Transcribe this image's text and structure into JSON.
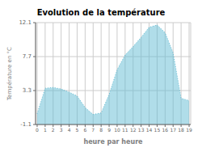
{
  "chart_data": {
    "type": "area",
    "title": "Evolution de la température",
    "x_label": "heure par heure",
    "y_label": "Température en °C",
    "x": [
      0,
      1,
      2,
      3,
      4,
      5,
      6,
      7,
      8,
      9,
      10,
      11,
      12,
      13,
      14,
      15,
      16,
      17,
      18,
      19
    ],
    "values": [
      0.3,
      3.6,
      3.7,
      3.5,
      3.1,
      2.6,
      1.1,
      0.2,
      0.4,
      2.8,
      6.0,
      7.9,
      9.0,
      10.2,
      11.5,
      11.8,
      10.8,
      8.2,
      2.3,
      2.0
    ],
    "xlim": [
      -0.2,
      19.2
    ],
    "xticks": [
      0,
      1,
      2,
      3,
      4,
      5,
      6,
      7,
      8,
      9,
      10,
      11,
      12,
      13,
      14,
      15,
      16,
      17,
      18,
      19
    ],
    "ylim": [
      -1.1,
      12.1
    ],
    "yticks": [
      -1.1,
      3.3,
      7.7,
      12.1
    ],
    "color": "#62bcd4",
    "line_style": "dotted",
    "grid": true
  }
}
